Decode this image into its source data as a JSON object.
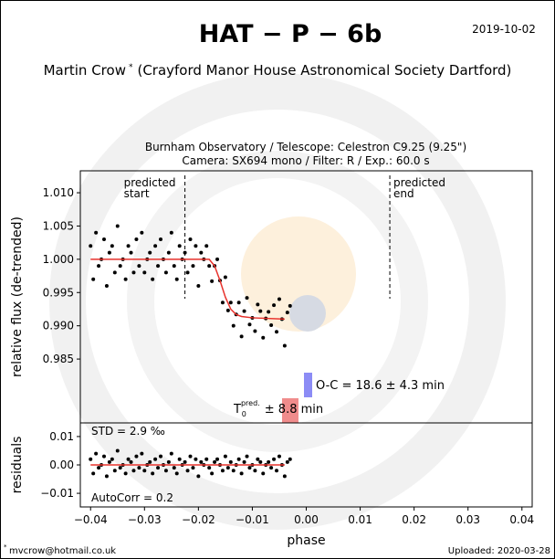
{
  "header": {
    "title": "HAT − P − 6b",
    "date": "2019-10-02",
    "author": "Martin Crow",
    "author_mark": "*",
    "affiliation": "(Crayford Manor House Astronomical Society Dartford)",
    "subtitle": [
      "Burnham Observatory / Telescope: Celestron C9.25 (9.25\")",
      "Camera: SX694 mono / Filter: R / Exp.: 60.0 s"
    ]
  },
  "footer": {
    "mark": "*",
    "email": "mvcrow@hotmail.co.uk",
    "uploaded": "Uploaded: 2020-03-28"
  },
  "chart_data": [
    {
      "type": "scatter",
      "y_label": "relative flux (de-trended)",
      "xlim": [
        -0.0419,
        0.0419
      ],
      "ylim": [
        0.9754,
        1.0133
      ],
      "yticks": [
        {
          "value": 1.01,
          "label": "1.010"
        },
        1.005,
        {
          "value": 1.0,
          "label": "1.000"
        },
        0.995,
        {
          "value": 0.99,
          "label": "0.990"
        },
        0.985
      ],
      "vlines": [
        {
          "x": -0.0225,
          "label": [
            "predicted",
            "start"
          ]
        },
        {
          "x": 0.0155,
          "label": [
            "predicted",
            "end"
          ]
        }
      ],
      "oc_label": "O-C = 18.6 ± 4.3 min",
      "t0_label": {
        "symbol": "T",
        "sub": "0",
        "sup": "pred.",
        "text": "± 8.8 min"
      },
      "series": [
        {
          "style": "points",
          "color": "#000000",
          "x": [
            -0.04,
            -0.0395,
            -0.039,
            -0.0385,
            -0.038,
            -0.0375,
            -0.037,
            -0.0365,
            -0.036,
            -0.0355,
            -0.035,
            -0.0345,
            -0.034,
            -0.0335,
            -0.033,
            -0.0325,
            -0.032,
            -0.0315,
            -0.031,
            -0.0305,
            -0.03,
            -0.0295,
            -0.029,
            -0.0285,
            -0.028,
            -0.0275,
            -0.027,
            -0.0265,
            -0.026,
            -0.0255,
            -0.025,
            -0.0245,
            -0.024,
            -0.0235,
            -0.023,
            -0.0225,
            -0.022,
            -0.0215,
            -0.021,
            -0.0205,
            -0.02,
            -0.0195,
            -0.019,
            -0.0185,
            -0.018,
            -0.0175,
            -0.017,
            -0.0165,
            -0.016,
            -0.0155,
            -0.015,
            -0.0145,
            -0.014,
            -0.0135,
            -0.013,
            -0.0125,
            -0.012,
            -0.0115,
            -0.011,
            -0.0105,
            -0.01,
            -0.0095,
            -0.009,
            -0.0085,
            -0.008,
            -0.0075,
            -0.007,
            -0.0065,
            -0.006,
            -0.0055,
            -0.005,
            -0.0045,
            -0.004,
            -0.0035,
            -0.003
          ],
          "values": [
            1.002,
            0.997,
            1.004,
            0.999,
            1.0,
            1.003,
            0.996,
            1.001,
            1.002,
            0.998,
            1.005,
            0.999,
            1.0,
            0.997,
            1.002,
            1.001,
            0.998,
            1.003,
            0.999,
            1.004,
            0.998,
            1.0,
            1.001,
            0.997,
            1.002,
            0.999,
            1.003,
            1.0,
            0.998,
            1.001,
            1.004,
            0.999,
            0.997,
            1.002,
            1.0,
            1.001,
            0.998,
            1.003,
            0.999,
            1.002,
            0.996,
            1.001,
            1.0,
            1.002,
            0.999,
            0.9967,
            0.999,
            1.0,
            0.9968,
            0.9935,
            0.9973,
            0.9923,
            0.9935,
            0.99,
            0.9917,
            0.9935,
            0.9884,
            0.9922,
            0.9942,
            0.9902,
            0.9912,
            0.9892,
            0.9932,
            0.9922,
            0.9882,
            0.9911,
            0.9921,
            0.9901,
            0.9931,
            0.9891,
            0.994,
            0.991,
            0.987,
            0.992,
            0.993
          ]
        },
        {
          "style": "line",
          "color": "#e8322c",
          "x": [
            -0.04,
            -0.018,
            -0.017,
            -0.016,
            -0.015,
            -0.014,
            -0.013,
            -0.012,
            -0.01,
            -0.004
          ],
          "values": [
            1.0,
            1.0,
            0.999,
            0.9968,
            0.9943,
            0.9925,
            0.9917,
            0.9914,
            0.9912,
            0.991
          ]
        }
      ]
    },
    {
      "type": "scatter",
      "y_label": "residuals",
      "x_label": "phase",
      "xlim": [
        -0.0419,
        0.0419
      ],
      "ylim": [
        -0.0148,
        0.0148
      ],
      "yticks": [
        0.01,
        {
          "value": 0,
          "label": "0.00"
        },
        {
          "value": -0.01,
          "label": "−0.01"
        }
      ],
      "xticks": [
        {
          "value": -0.04,
          "label": "−0.04"
        },
        {
          "value": -0.03,
          "label": "−0.03"
        },
        {
          "value": -0.02,
          "label": "−0.02"
        },
        {
          "value": -0.01,
          "label": "−0.01"
        },
        {
          "value": 0,
          "label": "0.00"
        },
        0.01,
        0.02,
        0.03,
        0.04
      ],
      "std_label": "STD = 2.9 ‰",
      "autocorr_label": "AutoCorr = 0.2",
      "series": [
        {
          "style": "points",
          "color": "#000000",
          "x": [
            -0.04,
            -0.0395,
            -0.039,
            -0.0385,
            -0.038,
            -0.0375,
            -0.037,
            -0.0365,
            -0.036,
            -0.0355,
            -0.035,
            -0.0345,
            -0.034,
            -0.0335,
            -0.033,
            -0.0325,
            -0.032,
            -0.0315,
            -0.031,
            -0.0305,
            -0.03,
            -0.0295,
            -0.029,
            -0.0285,
            -0.028,
            -0.0275,
            -0.027,
            -0.0265,
            -0.026,
            -0.0255,
            -0.025,
            -0.0245,
            -0.024,
            -0.0235,
            -0.023,
            -0.0225,
            -0.022,
            -0.0215,
            -0.021,
            -0.0205,
            -0.02,
            -0.0195,
            -0.019,
            -0.0185,
            -0.018,
            -0.0175,
            -0.017,
            -0.0165,
            -0.016,
            -0.0155,
            -0.015,
            -0.0145,
            -0.014,
            -0.0135,
            -0.013,
            -0.0125,
            -0.012,
            -0.0115,
            -0.011,
            -0.0105,
            -0.01,
            -0.0095,
            -0.009,
            -0.0085,
            -0.008,
            -0.0075,
            -0.007,
            -0.0065,
            -0.006,
            -0.0055,
            -0.005,
            -0.0045,
            -0.004,
            -0.0035,
            -0.003
          ],
          "values": [
            0.002,
            -0.003,
            0.004,
            -0.001,
            0,
            0.003,
            -0.004,
            0.001,
            0.002,
            -0.002,
            0.005,
            -0.001,
            0,
            -0.003,
            0.002,
            0.001,
            -0.002,
            0.003,
            -0.001,
            0.004,
            -0.002,
            0,
            0.001,
            -0.003,
            0.002,
            -0.001,
            0.003,
            0,
            -0.002,
            0.001,
            0.004,
            -0.001,
            -0.003,
            0.002,
            0,
            0.001,
            -0.002,
            0.003,
            -0.001,
            0.002,
            -0.004,
            0.001,
            0,
            0.002,
            -0.001,
            -0.003,
            0.001,
            0.002,
            0,
            -0.002,
            0.003,
            -0.001,
            0.001,
            -0.002,
            0,
            0.002,
            -0.003,
            0.001,
            0.003,
            -0.001,
            0,
            -0.002,
            0.002,
            0.001,
            -0.003,
            0,
            0.001,
            -0.001,
            0.002,
            -0.002,
            0.003,
            0,
            -0.004,
            0.001,
            0.002
          ]
        },
        {
          "style": "line",
          "color": "#e8322c",
          "x": [
            -0.04,
            -0.004
          ],
          "values": [
            0,
            0
          ]
        }
      ]
    }
  ]
}
